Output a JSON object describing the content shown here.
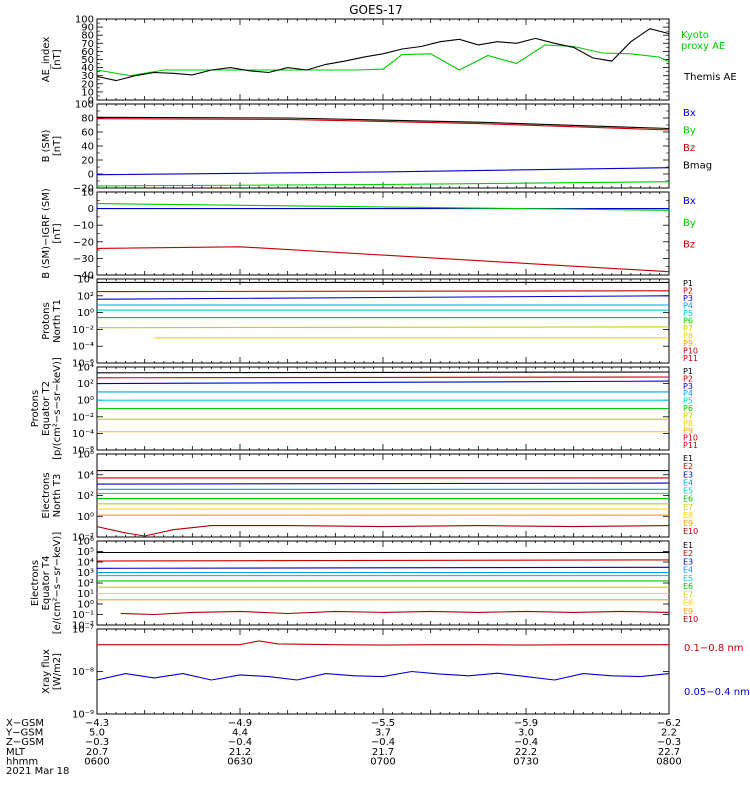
{
  "title": "GOES-17",
  "date": "2021 Mar 18",
  "chart_data": [
    {
      "type": "line",
      "panel": "ae_index",
      "ylabel": [
        "AE_index",
        "[nT]"
      ],
      "ylim": [
        0,
        100
      ],
      "yscale": "linear",
      "yticks": [
        "0",
        "10",
        "20",
        "30",
        "40",
        "50",
        "60",
        "70",
        "80",
        "90",
        "100"
      ],
      "series": [
        {
          "name": "Kyoto proxy AE",
          "name_lines": [
            "Kyoto",
            "proxy AE"
          ],
          "color": "#00cc00",
          "x": [
            0,
            7,
            14,
            22,
            30,
            38,
            46,
            54,
            60,
            64,
            70,
            76,
            82,
            88,
            94,
            100,
            106,
            112,
            118,
            120
          ],
          "values": [
            37,
            30,
            37,
            37,
            37,
            37,
            37,
            37,
            38,
            56,
            57,
            37,
            55,
            45,
            68,
            66,
            58,
            57,
            53,
            47
          ]
        },
        {
          "name": "Themis AE",
          "name_lines": [
            "Themis AE"
          ],
          "color": "#000000",
          "x": [
            0,
            4,
            8,
            12,
            16,
            20,
            24,
            28,
            32,
            36,
            40,
            44,
            48,
            52,
            56,
            60,
            64,
            68,
            72,
            76,
            80,
            84,
            88,
            92,
            96,
            100,
            104,
            108,
            112,
            116,
            120
          ],
          "values": [
            29,
            24,
            30,
            34,
            33,
            31,
            37,
            40,
            36,
            34,
            40,
            37,
            44,
            48,
            53,
            57,
            63,
            66,
            72,
            75,
            68,
            72,
            70,
            76,
            70,
            65,
            52,
            48,
            72,
            88,
            82
          ]
        }
      ]
    },
    {
      "type": "line",
      "panel": "b_sm",
      "ylabel": [
        "B (SM)",
        "[nT]"
      ],
      "ylim": [
        -20,
        100
      ],
      "yscale": "linear",
      "yticks": [
        "−20",
        "0",
        "20",
        "40",
        "60",
        "80",
        "100"
      ],
      "series": [
        {
          "name": "Bx",
          "color": "#0000cc",
          "x": [
            0,
            60,
            120
          ],
          "values": [
            -1,
            3,
            9
          ]
        },
        {
          "name": "By",
          "color": "#00cc00",
          "x": [
            0,
            60,
            120
          ],
          "values": [
            -17,
            -15,
            -11
          ]
        },
        {
          "name": "Bz",
          "color": "#cc0000",
          "x": [
            0,
            40,
            80,
            120
          ],
          "values": [
            79,
            78,
            72,
            63
          ]
        },
        {
          "name": "Bmag",
          "color": "#000000",
          "x": [
            0,
            40,
            80,
            120
          ],
          "values": [
            81,
            80,
            74,
            65
          ]
        }
      ]
    },
    {
      "type": "line",
      "panel": "b_sm_igrf",
      "ylabel": [
        "B (SM)−IGRF (SM)",
        "[nT]"
      ],
      "ylim": [
        -40,
        10
      ],
      "yscale": "linear",
      "yticks": [
        "−40",
        "−30",
        "−20",
        "−10",
        "0",
        "10"
      ],
      "series": [
        {
          "name": "Bx",
          "color": "#0000cc",
          "x": [
            0,
            60,
            120
          ],
          "values": [
            0,
            0,
            0
          ]
        },
        {
          "name": "By",
          "color": "#00cc00",
          "x": [
            0,
            60,
            120
          ],
          "values": [
            3,
            1,
            -1
          ]
        },
        {
          "name": "Bz",
          "color": "#cc0000",
          "x": [
            0,
            30,
            60,
            90,
            120
          ],
          "values": [
            -24,
            -23,
            -28,
            -33,
            -38
          ]
        }
      ]
    },
    {
      "type": "line",
      "panel": "protons_t1",
      "ylabel": [
        "Protons",
        "North T1"
      ],
      "yscale": "log",
      "ylim_exp": [
        -6,
        4
      ],
      "yticks": [
        "10⁻⁶",
        "10⁻⁴",
        "10⁻²",
        "10⁰",
        "10²",
        "10⁴"
      ],
      "series": [
        {
          "name": "P1",
          "color": "#000000",
          "x": [
            0,
            120
          ],
          "values": [
            3.6,
            3.6
          ]
        },
        {
          "name": "P2",
          "color": "#cc0000",
          "x": [
            0,
            120
          ],
          "values": [
            2.5,
            2.6
          ]
        },
        {
          "name": "P3",
          "color": "#0000cc",
          "x": [
            0,
            120
          ],
          "values": [
            1.6,
            2.0
          ]
        },
        {
          "name": "P4",
          "color": "#00a0e0",
          "x": [
            0,
            120
          ],
          "values": [
            0.9,
            0.9
          ]
        },
        {
          "name": "P5",
          "color": "#00d0d0",
          "x": [
            0,
            120
          ],
          "values": [
            0.3,
            0.3
          ]
        },
        {
          "name": "P6",
          "color": "#00cc00",
          "x": [
            0,
            120
          ],
          "values": [
            -0.6,
            -0.6
          ]
        },
        {
          "name": "P7",
          "color": "#c8d000",
          "x": [
            0,
            120
          ],
          "values": [
            -1.8,
            -1.7
          ]
        },
        {
          "name": "P8",
          "color": "#ffd000",
          "x": [
            12,
            120
          ],
          "values": [
            -3.0,
            -3.0
          ]
        },
        {
          "name": "P9",
          "color": "#ffa000"
        },
        {
          "name": "P10",
          "color": "#cc0000"
        },
        {
          "name": "P11",
          "color": "#cc0000"
        }
      ]
    },
    {
      "type": "line",
      "panel": "protons_t2",
      "ylabel": [
        "Protons",
        "Equator T2",
        "[p/(cm²−s−sr−keV)]"
      ],
      "yscale": "log",
      "ylim_exp": [
        -6,
        4
      ],
      "yticks": [
        "10⁻⁶",
        "10⁻⁴",
        "10⁻²",
        "10⁰",
        "10²",
        "10⁴"
      ],
      "series": [
        {
          "name": "P1",
          "color": "#000000",
          "x": [
            0,
            120
          ],
          "values": [
            3.3,
            3.4
          ]
        },
        {
          "name": "P2",
          "color": "#cc0000",
          "x": [
            0,
            120
          ],
          "values": [
            2.7,
            2.8
          ]
        },
        {
          "name": "P3",
          "color": "#0000cc",
          "x": [
            0,
            120
          ],
          "values": [
            2.0,
            2.3
          ]
        },
        {
          "name": "P4",
          "color": "#00a0e0",
          "x": [
            0,
            120
          ],
          "values": [
            1.0,
            1.0
          ]
        },
        {
          "name": "P5",
          "color": "#00d0d0",
          "x": [
            0,
            120
          ],
          "values": [
            0.0,
            0.0
          ]
        },
        {
          "name": "P6",
          "color": "#00cc00",
          "x": [
            0,
            120
          ],
          "values": [
            -1.0,
            -1.0
          ]
        },
        {
          "name": "P7",
          "color": "#c8d000",
          "x": [
            0,
            120
          ],
          "values": [
            -2.3,
            -2.3
          ]
        },
        {
          "name": "P8",
          "color": "#ffd000",
          "x": [
            0,
            120
          ],
          "values": [
            -3.8,
            -3.8
          ]
        },
        {
          "name": "P9",
          "color": "#ffa000"
        },
        {
          "name": "P10",
          "color": "#cc0000"
        },
        {
          "name": "P11",
          "color": "#cc0000"
        }
      ]
    },
    {
      "type": "line",
      "panel": "electrons_t3",
      "ylabel": [
        "Electrons",
        "North T3"
      ],
      "yscale": "log",
      "ylim_exp": [
        -2,
        6
      ],
      "yticks": [
        "10⁻²",
        "10⁰",
        "10²",
        "10⁴",
        "10⁶"
      ],
      "series": [
        {
          "name": "E1",
          "color": "#000000",
          "x": [
            0,
            120
          ],
          "values": [
            4.4,
            4.4
          ]
        },
        {
          "name": "E2",
          "color": "#cc0000",
          "x": [
            0,
            120
          ],
          "values": [
            3.7,
            3.7
          ]
        },
        {
          "name": "E3",
          "color": "#0000cc",
          "x": [
            0,
            120
          ],
          "values": [
            3.1,
            3.2
          ]
        },
        {
          "name": "E4",
          "color": "#00a0e0",
          "x": [
            0,
            120
          ],
          "values": [
            2.6,
            2.6
          ]
        },
        {
          "name": "E5",
          "color": "#00d0d0",
          "x": [
            0,
            120
          ],
          "values": [
            2.2,
            2.2
          ]
        },
        {
          "name": "E6",
          "color": "#00cc00",
          "x": [
            0,
            120
          ],
          "values": [
            1.7,
            1.7
          ]
        },
        {
          "name": "E7",
          "color": "#c8d000",
          "x": [
            0,
            120
          ],
          "values": [
            1.2,
            1.2
          ]
        },
        {
          "name": "E8",
          "color": "#ffd000",
          "x": [
            0,
            120
          ],
          "values": [
            0.7,
            0.7
          ]
        },
        {
          "name": "E9",
          "color": "#ffa000",
          "x": [
            0,
            120
          ],
          "values": [
            0.1,
            0.1
          ]
        },
        {
          "name": "E10",
          "color": "#aa0000",
          "x": [
            0,
            6,
            10,
            16,
            24,
            40,
            60,
            80,
            100,
            120
          ],
          "values": [
            -1.0,
            -1.6,
            -1.9,
            -1.3,
            -0.9,
            -0.9,
            -1.0,
            -0.9,
            -1.0,
            -0.9
          ]
        }
      ]
    },
    {
      "type": "line",
      "panel": "electrons_t4",
      "ylabel": [
        "Electrons",
        "Equator T4",
        "[e/(cm²−s−sr−keV)]"
      ],
      "yscale": "log",
      "ylim_exp": [
        -2,
        6
      ],
      "yticks": [
        "10⁻²",
        "10⁻¹",
        "10⁰",
        "10¹",
        "10²",
        "10³",
        "10⁴",
        "10⁵",
        "10⁶"
      ],
      "series": [
        {
          "name": "E1",
          "color": "#000000",
          "x": [
            0,
            120
          ],
          "values": [
            4.9,
            4.9
          ]
        },
        {
          "name": "E2",
          "color": "#cc0000",
          "x": [
            0,
            120
          ],
          "values": [
            4.1,
            4.2
          ]
        },
        {
          "name": "E3",
          "color": "#0000cc",
          "x": [
            0,
            120
          ],
          "values": [
            3.4,
            3.5
          ]
        },
        {
          "name": "E4",
          "color": "#00a0e0",
          "x": [
            0,
            120
          ],
          "values": [
            3.0,
            3.0
          ]
        },
        {
          "name": "E5",
          "color": "#00d0d0",
          "x": [
            0,
            120
          ],
          "values": [
            2.7,
            2.7
          ]
        },
        {
          "name": "E6",
          "color": "#00cc00",
          "x": [
            0,
            120
          ],
          "values": [
            2.2,
            2.2
          ]
        },
        {
          "name": "E7",
          "color": "#c8d000",
          "x": [
            0,
            120
          ],
          "values": [
            1.6,
            1.6
          ]
        },
        {
          "name": "E8",
          "color": "#ffd000",
          "x": [
            0,
            120
          ],
          "values": [
            1.0,
            1.0
          ]
        },
        {
          "name": "E9",
          "color": "#ffa000",
          "x": [
            0,
            120
          ],
          "values": [
            0.4,
            0.4
          ]
        },
        {
          "name": "E10",
          "color": "#aa0000",
          "x": [
            5,
            12,
            20,
            30,
            40,
            50,
            60,
            70,
            80,
            90,
            100,
            110,
            120
          ],
          "values": [
            -0.9,
            -1.0,
            -0.8,
            -0.7,
            -0.9,
            -0.7,
            -0.8,
            -0.7,
            -0.8,
            -0.7,
            -0.8,
            -0.7,
            -0.8
          ]
        }
      ]
    },
    {
      "type": "line",
      "panel": "xray_flux",
      "ylabel": [
        "Xray flux",
        "[W/m2]"
      ],
      "yscale": "log",
      "ylim_exp": [
        -9,
        -7
      ],
      "yticks": [
        "10⁻⁹",
        "10⁻⁸",
        "10⁻⁷"
      ],
      "series": [
        {
          "name": "0.1−0.8 nm",
          "color": "#cc0000",
          "x": [
            0,
            10,
            20,
            30,
            34,
            38,
            50,
            60,
            70,
            80,
            90,
            100,
            110,
            120
          ],
          "values": [
            -7.37,
            -7.37,
            -7.37,
            -7.37,
            -7.28,
            -7.35,
            -7.37,
            -7.38,
            -7.37,
            -7.37,
            -7.38,
            -7.37,
            -7.37,
            -7.37
          ]
        },
        {
          "name": "0.05−0.4 nm",
          "color": "#0000cc",
          "x": [
            0,
            6,
            12,
            18,
            24,
            30,
            36,
            42,
            48,
            54,
            60,
            66,
            72,
            78,
            84,
            90,
            96,
            102,
            108,
            114,
            120
          ],
          "values": [
            -8.2,
            -8.05,
            -8.15,
            -8.05,
            -8.2,
            -8.08,
            -8.12,
            -8.2,
            -8.05,
            -8.1,
            -8.12,
            -8.0,
            -8.06,
            -8.1,
            -8.04,
            -8.12,
            -8.2,
            -8.05,
            -8.1,
            -8.12,
            -8.05
          ]
        }
      ]
    }
  ],
  "ephemeris": {
    "row_labels": [
      "X−GSM",
      "Y−GSM",
      "Z−GSM",
      "MLT",
      "hhmm"
    ],
    "columns": [
      {
        "x": 0,
        "values": [
          "−4.3",
          "5.0",
          "−0.3",
          "20.7",
          "0600"
        ]
      },
      {
        "x": 30,
        "values": [
          "−4.9",
          "4.4",
          "−0.4",
          "21.2",
          "0630"
        ]
      },
      {
        "x": 60,
        "values": [
          "−5.5",
          "3.7",
          "−0.4",
          "21.7",
          "0700"
        ]
      },
      {
        "x": 90,
        "values": [
          "−5.9",
          "3.0",
          "−0.4",
          "22.2",
          "0730"
        ]
      },
      {
        "x": 120,
        "values": [
          "−6.2",
          "2.2",
          "−0.3",
          "22.7",
          "0800"
        ]
      }
    ]
  }
}
